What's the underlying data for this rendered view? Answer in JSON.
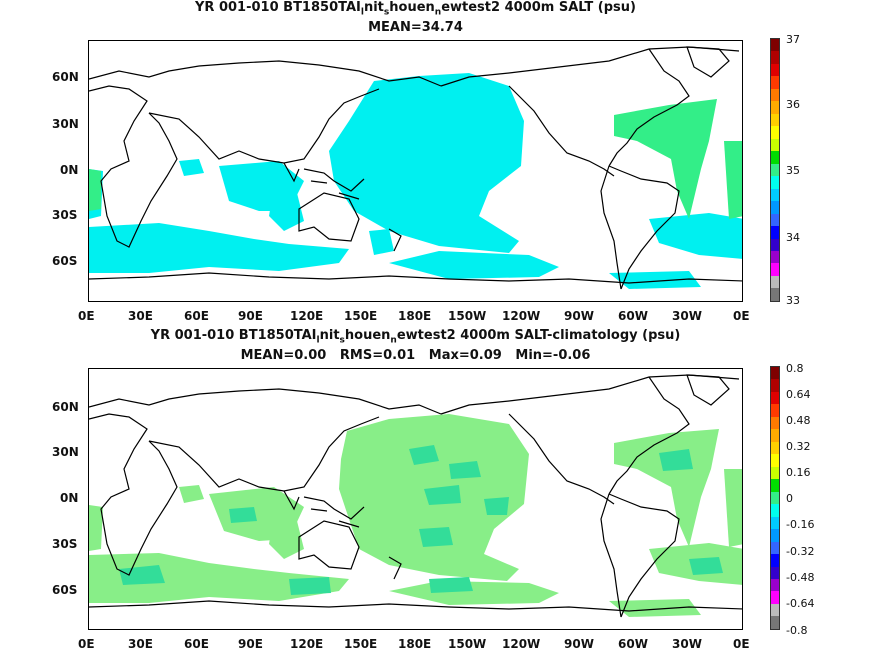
{
  "panels": [
    {
      "title_parts": [
        "YR 001-010 BT1850TAI",
        "l",
        "nit",
        "s",
        "houen",
        "n",
        "ewtest2 4000m SALT (psu)"
      ],
      "stats": "MEAN=34.74",
      "fill_color": "#00f0f0",
      "patch_color": "#33ee88",
      "colorbar_labels": [
        "37",
        "36",
        "35",
        "34",
        "33"
      ],
      "colorbar_colors": [
        "#7f0000",
        "#b00000",
        "#e00000",
        "#ff3a00",
        "#ff7a00",
        "#ffaa00",
        "#ffd000",
        "#ffff00",
        "#c8ff00",
        "#00dd00",
        "#33ee88",
        "#00ffee",
        "#00ccff",
        "#0099ff",
        "#3366ff",
        "#0000ff",
        "#3300cc",
        "#9900cc",
        "#ff00ff",
        "#bbbbbb",
        "#777777"
      ]
    },
    {
      "title_parts": [
        "YR 001-010 BT1850TAI",
        "l",
        "nit",
        "s",
        "houen",
        "n",
        "ewtest2 4000m SALT-climatology (psu)"
      ],
      "stats": "MEAN=0.00   RMS=0.01   Max=0.09   Min=-0.06",
      "fill_color": "#88ee88",
      "patch_color": "#33dd99",
      "colorbar_labels": [
        "0.8",
        "0.64",
        "0.48",
        "0.32",
        "0.16",
        "0",
        "-0.16",
        "-0.32",
        "-0.48",
        "-0.64",
        "-0.8"
      ],
      "colorbar_colors": [
        "#7f0000",
        "#b00000",
        "#e00000",
        "#ff3a00",
        "#ff7a00",
        "#ffaa00",
        "#ffd000",
        "#ffff00",
        "#c8ff00",
        "#00dd00",
        "#33ee88",
        "#00ffee",
        "#00ccff",
        "#0099ff",
        "#3366ff",
        "#0000ff",
        "#3300cc",
        "#9900cc",
        "#ff00ff",
        "#bbbbbb",
        "#777777"
      ]
    }
  ],
  "x_ticks": [
    "0E",
    "30E",
    "60E",
    "90E",
    "120E",
    "150E",
    "180E",
    "150W",
    "120W",
    "90W",
    "60W",
    "30W",
    "0E"
  ],
  "y_ticks": [
    "60N",
    "30N",
    "0N",
    "30S",
    "60S"
  ]
}
